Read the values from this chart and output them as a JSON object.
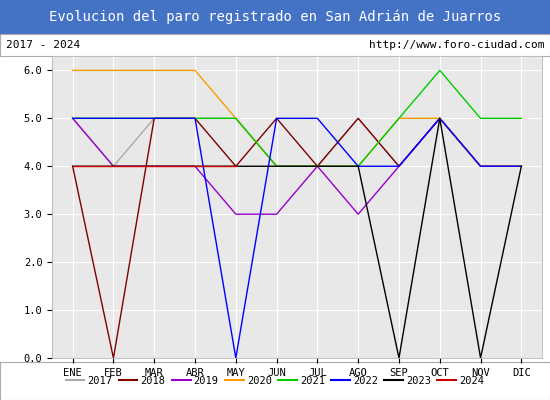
{
  "title": "Evolucion del paro registrado en San Adrián de Juarros",
  "subtitle_left": "2017 - 2024",
  "subtitle_right": "http://www.foro-ciudad.com",
  "title_bg": "#4472c4",
  "title_color": "white",
  "subtitle_bg": "white",
  "subtitle_color": "black",
  "plot_bg": "#e8e8e8",
  "grid_color": "white",
  "months": [
    "ENE",
    "FEB",
    "MAR",
    "ABR",
    "MAY",
    "JUN",
    "JUL",
    "AGO",
    "SEP",
    "OCT",
    "NOV",
    "DIC"
  ],
  "ylim": [
    0.0,
    6.3
  ],
  "yticks": [
    0.0,
    1.0,
    2.0,
    3.0,
    4.0,
    5.0,
    6.0
  ],
  "years": {
    "2017": {
      "color": "#aaaaaa",
      "data": [
        5,
        4,
        5,
        5,
        5,
        4,
        4,
        5,
        4,
        5,
        4,
        4
      ]
    },
    "2018": {
      "color": "#800000",
      "data": [
        4,
        0,
        5,
        5,
        4,
        5,
        4,
        5,
        4,
        5,
        4,
        4
      ]
    },
    "2019": {
      "color": "#9900cc",
      "data": [
        5,
        4,
        4,
        4,
        3,
        3,
        4,
        3,
        4,
        5,
        4,
        4
      ]
    },
    "2020": {
      "color": "#ff9900",
      "data": [
        6,
        6,
        6,
        6,
        5,
        4,
        4,
        4,
        5,
        5,
        4,
        4
      ]
    },
    "2021": {
      "color": "#00cc00",
      "data": [
        5,
        5,
        5,
        5,
        5,
        4,
        4,
        4,
        5,
        6,
        5,
        5
      ]
    },
    "2022": {
      "color": "#0000ff",
      "data": [
        5,
        5,
        5,
        5,
        0,
        5,
        5,
        4,
        4,
        5,
        4,
        4
      ]
    },
    "2023": {
      "color": "#000000",
      "data": [
        4,
        4,
        4,
        4,
        4,
        4,
        4,
        4,
        0,
        5,
        0,
        4
      ]
    },
    "2024": {
      "color": "#cc0000",
      "data": [
        4,
        4,
        4,
        4,
        4,
        null,
        null,
        null,
        null,
        null,
        null,
        null
      ]
    }
  },
  "legend_order": [
    "2017",
    "2018",
    "2019",
    "2020",
    "2021",
    "2022",
    "2023",
    "2024"
  ]
}
